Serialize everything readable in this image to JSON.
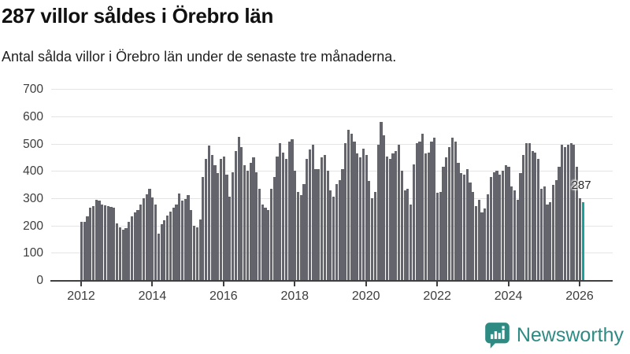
{
  "header": {
    "title": "287 villor såldes i Örebro län",
    "subtitle": "Antal sålda villor i Örebro län under de senaste tre månaderna."
  },
  "chart_data": {
    "type": "bar",
    "title": "287 villor såldes i Örebro län",
    "subtitle": "Antal sålda villor i Örebro län under de senaste tre månaderna.",
    "frequency": "monthly",
    "x_start": "2012-01",
    "x_end": "2026-02",
    "values": [
      213,
      214,
      235,
      264,
      272,
      293,
      290,
      277,
      274,
      272,
      268,
      266,
      209,
      194,
      185,
      190,
      213,
      233,
      247,
      258,
      278,
      300,
      314,
      334,
      302,
      276,
      170,
      204,
      218,
      237,
      252,
      264,
      276,
      316,
      291,
      298,
      312,
      257,
      199,
      194,
      223,
      377,
      444,
      492,
      459,
      420,
      391,
      444,
      454,
      387,
      305,
      396,
      473,
      526,
      487,
      420,
      401,
      430,
      449,
      396,
      334,
      276,
      266,
      257,
      334,
      377,
      454,
      502,
      468,
      444,
      507,
      516,
      401,
      324,
      312,
      353,
      444,
      478,
      497,
      406,
      406,
      449,
      459,
      401,
      329,
      305,
      353,
      367,
      406,
      502,
      550,
      536,
      507,
      464,
      449,
      483,
      459,
      363,
      300,
      324,
      497,
      579,
      531,
      454,
      444,
      464,
      473,
      497,
      401,
      329,
      334,
      276,
      425,
      502,
      507,
      536,
      464,
      468,
      507,
      521,
      319,
      324,
      415,
      449,
      487,
      521,
      507,
      430,
      391,
      387,
      406,
      358,
      324,
      271,
      295,
      247,
      262,
      314,
      377,
      396,
      401,
      387,
      401,
      420,
      415,
      343,
      329,
      295,
      391,
      459,
      502,
      502,
      473,
      468,
      444,
      334,
      343,
      276,
      286,
      348,
      367,
      415,
      497,
      487,
      497,
      502,
      497,
      415,
      300,
      287
    ],
    "highlight_last": true,
    "annotation": {
      "label": "287"
    },
    "ylim": [
      0,
      700
    ],
    "y_ticks": [
      0,
      100,
      200,
      300,
      400,
      500,
      600,
      700
    ],
    "x_tick_years": [
      2012,
      2014,
      2016,
      2018,
      2020,
      2022,
      2024,
      2026
    ],
    "grid": "horizontal",
    "bar_color": "#64646c",
    "highlight_color": "#15a29a"
  },
  "footer": {
    "brand": "Newsworthy",
    "brand_color": "#2e8b84",
    "logo_icon": "bar-chart-speech-bubble-icon"
  }
}
